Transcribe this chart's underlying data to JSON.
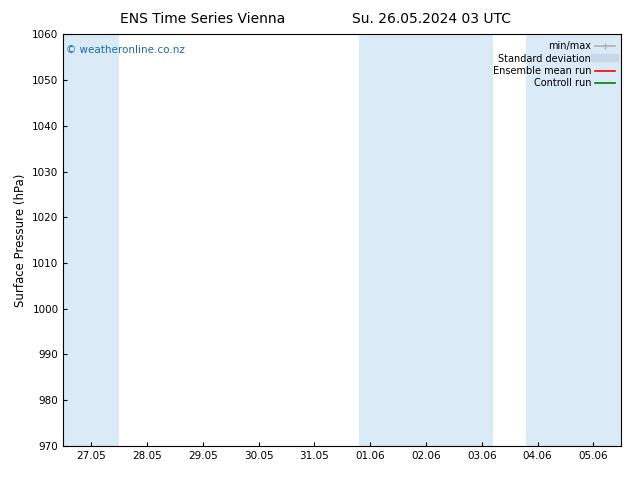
{
  "title_left": "ENS Time Series Vienna",
  "title_right": "Su. 26.05.2024 03 UTC",
  "ylabel": "Surface Pressure (hPa)",
  "ylim": [
    970,
    1060
  ],
  "yticks": [
    970,
    980,
    990,
    1000,
    1010,
    1020,
    1030,
    1040,
    1050,
    1060
  ],
  "xtick_labels": [
    "27.05",
    "28.05",
    "29.05",
    "30.05",
    "31.05",
    "01.06",
    "02.06",
    "03.06",
    "04.06",
    "05.06"
  ],
  "watermark": "© weatheronline.co.nz",
  "background_color": "#ffffff",
  "plot_bg_color": "#ffffff",
  "shaded_band_color": "#daeaf7",
  "legend_items": [
    {
      "label": "min/max",
      "color": "#b0b0b0",
      "lw": 1.2,
      "style": "line_with_caps"
    },
    {
      "label": "Standard deviation",
      "color": "#c8d8e8",
      "lw": 6,
      "style": "solid"
    },
    {
      "label": "Ensemble mean run",
      "color": "#ff0000",
      "lw": 1.2,
      "style": "solid"
    },
    {
      "label": "Controll run",
      "color": "#008000",
      "lw": 1.2,
      "style": "solid"
    }
  ],
  "title_fontsize": 10,
  "tick_fontsize": 7.5,
  "ylabel_fontsize": 8.5,
  "watermark_color": "#1a6aad",
  "watermark_fontsize": 7.5,
  "legend_fontsize": 7
}
